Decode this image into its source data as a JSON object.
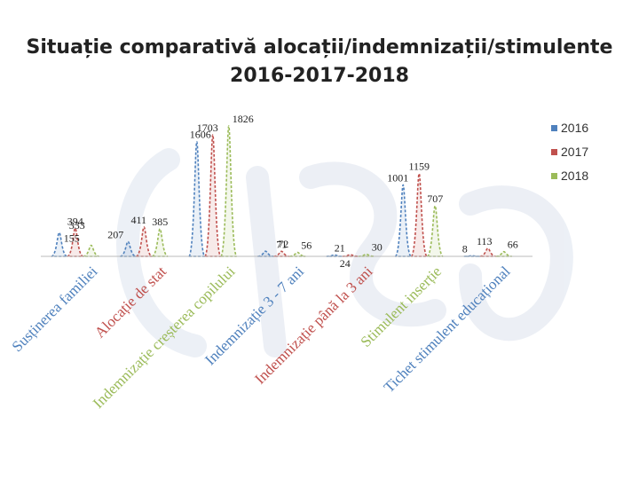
{
  "slide": {
    "title_line1": "Situație comparativă alocații/indemnizații/stimulente",
    "title_line2": "2016-2017-2018"
  },
  "chart_data": {
    "type": "area",
    "title": "Situație comparativă alocații/indemnizații/stimulente 2016-2017-2018",
    "categories": [
      "Susținerea familiei",
      "Alocație de stat",
      "Indemnizație creșterea copilului",
      "Indemnizație 3 - 7 ani",
      "Indemnizație până la 3 ani",
      "Stimulent inserție",
      "Tichet stimulent educațional"
    ],
    "series": [
      {
        "name": "2016",
        "color": "#4f81bd",
        "values": [
          333,
          207,
          1606,
          72,
          21,
          1001,
          8
        ]
      },
      {
        "name": "2017",
        "color": "#c0504d",
        "values": [
          394,
          411,
          1703,
          71,
          24,
          1159,
          113
        ]
      },
      {
        "name": "2018",
        "color": "#9bbb59",
        "values": [
          155,
          385,
          1826,
          56,
          30,
          707,
          66
        ]
      }
    ],
    "data_labels": [
      [
        "333",
        "207",
        "1606",
        "72",
        "21",
        "1001",
        "8"
      ],
      [
        "394",
        "411",
        "1703",
        "71",
        "24",
        "1159",
        "113"
      ],
      [
        "155",
        "385",
        "1826",
        "56",
        "30",
        "707",
        "66"
      ]
    ],
    "ylim": [
      0,
      1900
    ],
    "legend": "right"
  }
}
